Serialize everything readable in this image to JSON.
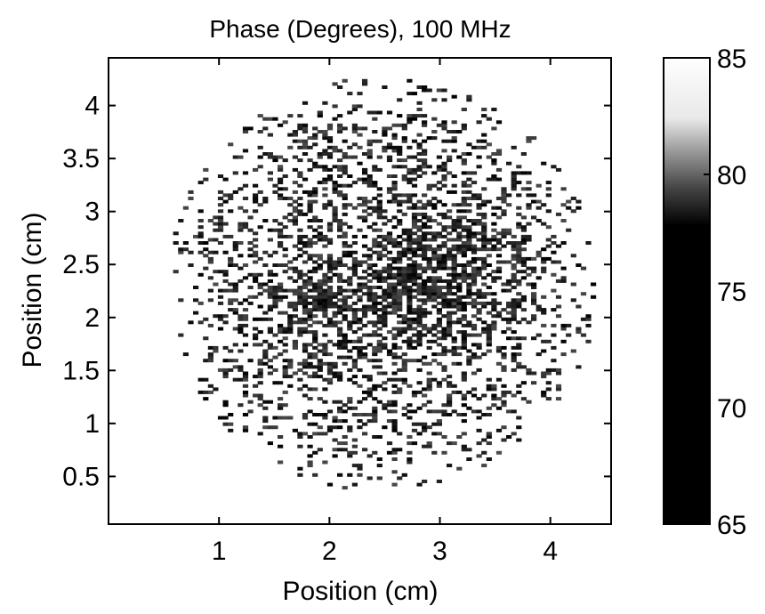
{
  "chart_data": {
    "type": "heatmap",
    "title": "Phase (Degrees),  100 MHz",
    "xlabel": "Position (cm)",
    "ylabel": "Position (cm)",
    "xlim": [
      0.0,
      4.55
    ],
    "ylim": [
      0.05,
      4.45
    ],
    "xticks": [
      1,
      2,
      3,
      4
    ],
    "xtick_labels": [
      "1",
      "2",
      "3",
      "4"
    ],
    "yticks": [
      0.5,
      1,
      1.5,
      2,
      2.5,
      3,
      3.5,
      4
    ],
    "ytick_labels": [
      "0.5",
      "1",
      "1.5",
      "2",
      "2.5",
      "3",
      "3.5",
      "4"
    ],
    "colorbar": {
      "range": [
        65,
        85
      ],
      "ticks": [
        65,
        70,
        75,
        80,
        85
      ],
      "tick_labels": [
        "65",
        "70",
        "75",
        "80",
        "85"
      ],
      "colormap": "gray (65 = black, 85 = white)"
    },
    "grid": false,
    "field": {
      "shape": "disc",
      "center_cm": [
        2.45,
        2.3
      ],
      "radius_cm": 1.95,
      "background_value_deg": 85,
      "dark_regions": [
        {
          "center_cm": [
            3.0,
            2.35
          ],
          "radius_cm": 0.9
        },
        {
          "center_cm": [
            1.85,
            2.1
          ],
          "radius_cm": 0.55
        }
      ]
    }
  }
}
